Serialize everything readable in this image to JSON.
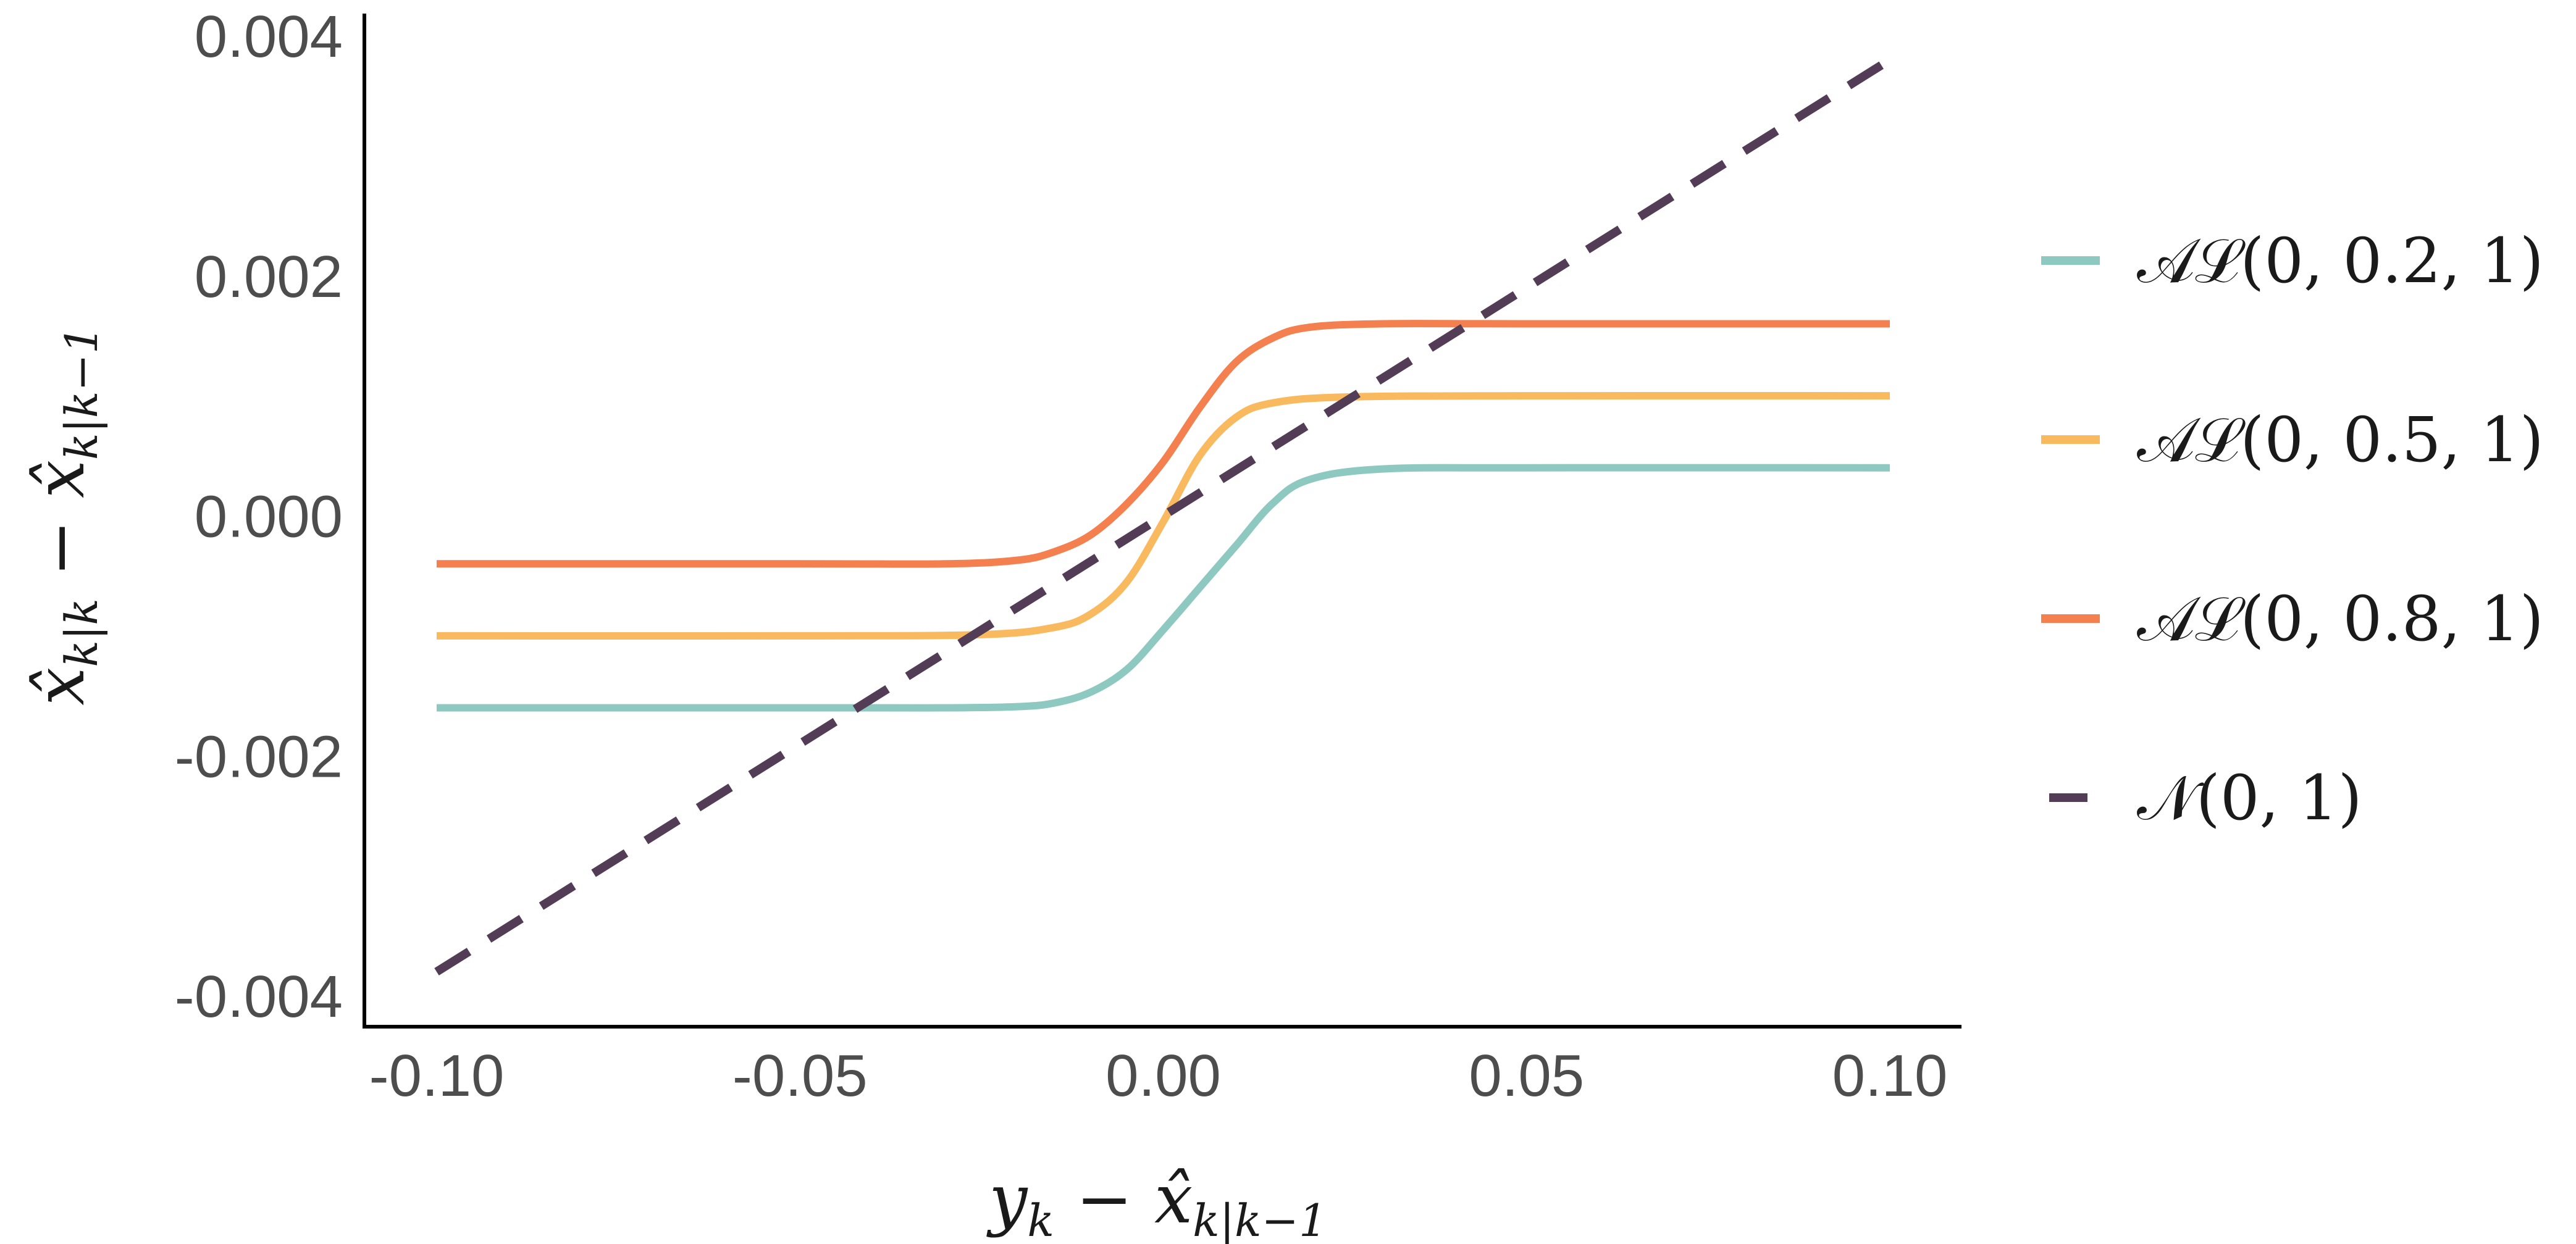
{
  "chart_data": {
    "type": "line",
    "xlabel": {
      "base": "y",
      "sub": "k",
      "mid": " − ",
      "hat": "x̂",
      "hat_sub": "k|k−1"
    },
    "ylabel": {
      "hat1": "x̂",
      "sub1": "k|k",
      "mid": " − ",
      "hat2": "x̂",
      "sub2": "k|k−1"
    },
    "xlim": [
      -0.1,
      0.1
    ],
    "ylim": [
      -0.004,
      0.004
    ],
    "x_ticks": [
      {
        "value": -0.1,
        "label": "-0.10"
      },
      {
        "value": -0.05,
        "label": "-0.05"
      },
      {
        "value": 0.0,
        "label": "0.00"
      },
      {
        "value": 0.05,
        "label": "0.05"
      },
      {
        "value": 0.1,
        "label": "0.10"
      }
    ],
    "y_ticks": [
      {
        "value": 0.004,
        "label": "0.004"
      },
      {
        "value": 0.002,
        "label": "0.002"
      },
      {
        "value": 0.0,
        "label": "0.000"
      },
      {
        "value": -0.002,
        "label": "-0.002"
      },
      {
        "value": -0.004,
        "label": "-0.004"
      }
    ],
    "grid": false,
    "legend_position": "right",
    "series": [
      {
        "name": "𝒜ℒ(0, 0.2, 1)",
        "color": "#8ec9c1",
        "dash": false,
        "x": [
          -0.1,
          -0.05,
          -0.03,
          -0.02,
          -0.015,
          -0.01,
          -0.005,
          0.0,
          0.005,
          0.01,
          0.015,
          0.02,
          0.03,
          0.05,
          0.1
        ],
        "y": [
          -0.0016,
          -0.0016,
          -0.0016,
          -0.00159,
          -0.00156,
          -0.00147,
          -0.00128,
          -0.00095,
          -0.0006,
          -0.00025,
          0.0001,
          0.0003,
          0.00039,
          0.0004,
          0.0004
        ]
      },
      {
        "name": "𝒜ℒ(0, 0.5, 1)",
        "color": "#f9b95f",
        "dash": false,
        "x": [
          -0.1,
          -0.05,
          -0.025,
          -0.015,
          -0.01,
          -0.005,
          0.0,
          0.005,
          0.01,
          0.015,
          0.025,
          0.05,
          0.1
        ],
        "y": [
          -0.001,
          -0.001,
          -0.00099,
          -0.00093,
          -0.00082,
          -0.00055,
          -5e-05,
          0.0005,
          0.00082,
          0.00094,
          0.00099,
          0.001,
          0.001
        ]
      },
      {
        "name": "𝒜ℒ(0, 0.8, 1)",
        "color": "#f47f4f",
        "dash": false,
        "x": [
          -0.1,
          -0.05,
          -0.03,
          -0.02,
          -0.015,
          -0.01,
          -0.005,
          0.0,
          0.005,
          0.01,
          0.015,
          0.02,
          0.03,
          0.05,
          0.1
        ],
        "y": [
          -0.0004,
          -0.0004,
          -0.0004,
          -0.00037,
          -0.0003,
          -0.00016,
          0.0001,
          0.00045,
          0.0009,
          0.00128,
          0.00148,
          0.00157,
          0.0016,
          0.0016,
          0.0016
        ]
      },
      {
        "name": "𝒩(0, 1)",
        "color": "#533c55",
        "dash": true,
        "x": [
          -0.1,
          0.1
        ],
        "y": [
          -0.0038,
          0.0038
        ]
      }
    ]
  }
}
